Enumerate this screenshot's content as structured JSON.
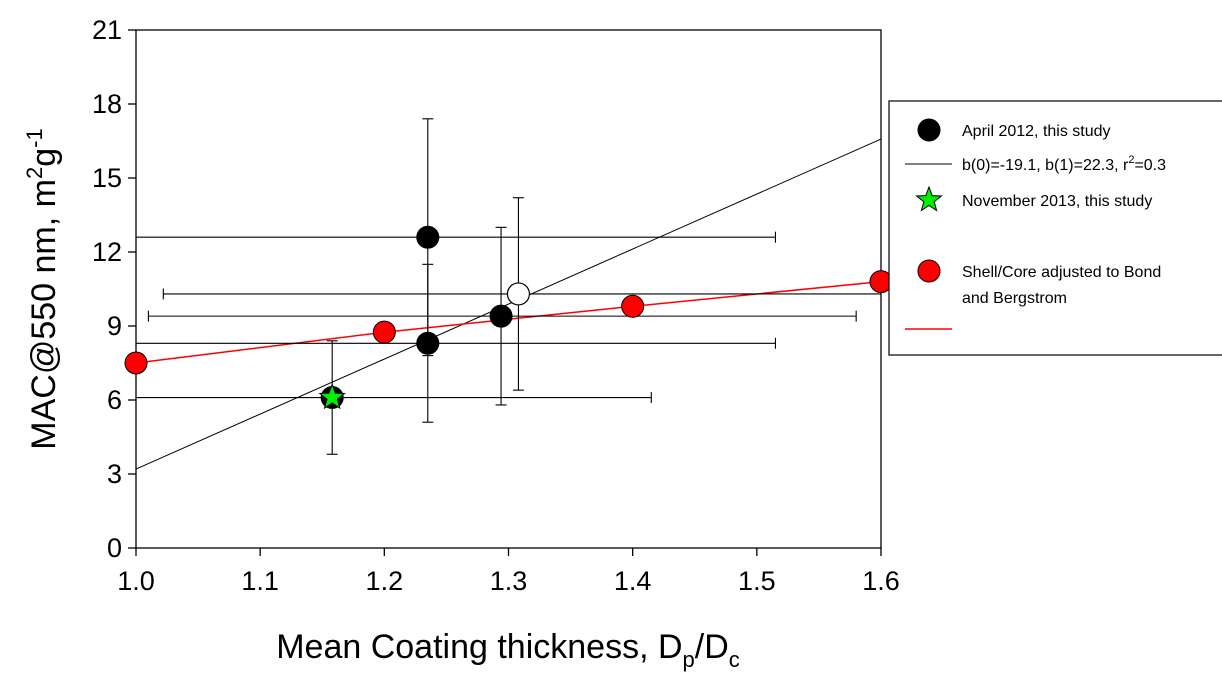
{
  "chart_data": {
    "type": "scatter",
    "xlabel": {
      "main": "Mean Coating thickness, D",
      "sub1": "p",
      "mid": "/D",
      "sub2": "c"
    },
    "ylabel": {
      "main": "MAC@550 nm, m",
      "sup1": "2",
      "mid": "g",
      "sup2": "-1"
    },
    "xlim": [
      1.0,
      1.6
    ],
    "ylim": [
      0,
      21
    ],
    "x_ticks": [
      "1.0",
      "1.1",
      "1.2",
      "1.3",
      "1.4",
      "1.5",
      "1.6"
    ],
    "y_ticks": [
      "0",
      "3",
      "6",
      "9",
      "12",
      "15",
      "18",
      "21"
    ],
    "grid": false,
    "legend_position": "right",
    "series": [
      {
        "name": "April 2012, this study",
        "marker": "filled-circle",
        "color": "#000000",
        "points": [
          {
            "x": 1.235,
            "y": 12.6,
            "xerr": [
              1.0,
              1.515
            ],
            "yerr": [
              7.8,
              17.4
            ]
          },
          {
            "x": 1.235,
            "y": 8.3,
            "xerr": [
              1.0,
              1.515
            ],
            "yerr": [
              5.1,
              11.5
            ]
          },
          {
            "x": 1.294,
            "y": 9.4,
            "xerr": [
              1.01,
              1.58
            ],
            "yerr": [
              5.8,
              13.0
            ]
          }
        ]
      },
      {
        "name": "April 2012, this study (open marker)",
        "marker": "open-circle",
        "color": "#000000",
        "points": [
          {
            "x": 1.308,
            "y": 10.3,
            "xerr": [
              1.022,
              1.6
            ],
            "yerr": [
              6.4,
              14.2
            ]
          }
        ]
      },
      {
        "name": "b(0)=-19.1, b(1)=22.3, r²=0.3",
        "type": "line",
        "color": "#000000",
        "intercept": -19.1,
        "slope": 22.3
      },
      {
        "name": "November 2013, this study",
        "marker": "star",
        "color": "#00ee00",
        "points": [
          {
            "x": 1.158,
            "y": 6.1,
            "xerr": [
              1.0,
              1.415
            ],
            "yerr": [
              3.8,
              8.4
            ]
          }
        ]
      },
      {
        "name": "Shell/Core adjusted to Bond and Bergstrom",
        "marker": "filled-circle",
        "color": "#ff0000",
        "x": [
          1.0,
          1.2,
          1.4,
          1.6
        ],
        "y": [
          7.5,
          8.75,
          9.8,
          10.8
        ]
      }
    ],
    "legend": {
      "april": "April 2012, this study",
      "fit_prefix": "b(0)=-19.1, b(1)=22.3, r",
      "fit_sup": "2",
      "fit_suffix": "=0.3",
      "november": "November 2013, this study",
      "shell_line1": "Shell/Core adjusted to Bond",
      "shell_line2": "and Bergstrom"
    }
  }
}
